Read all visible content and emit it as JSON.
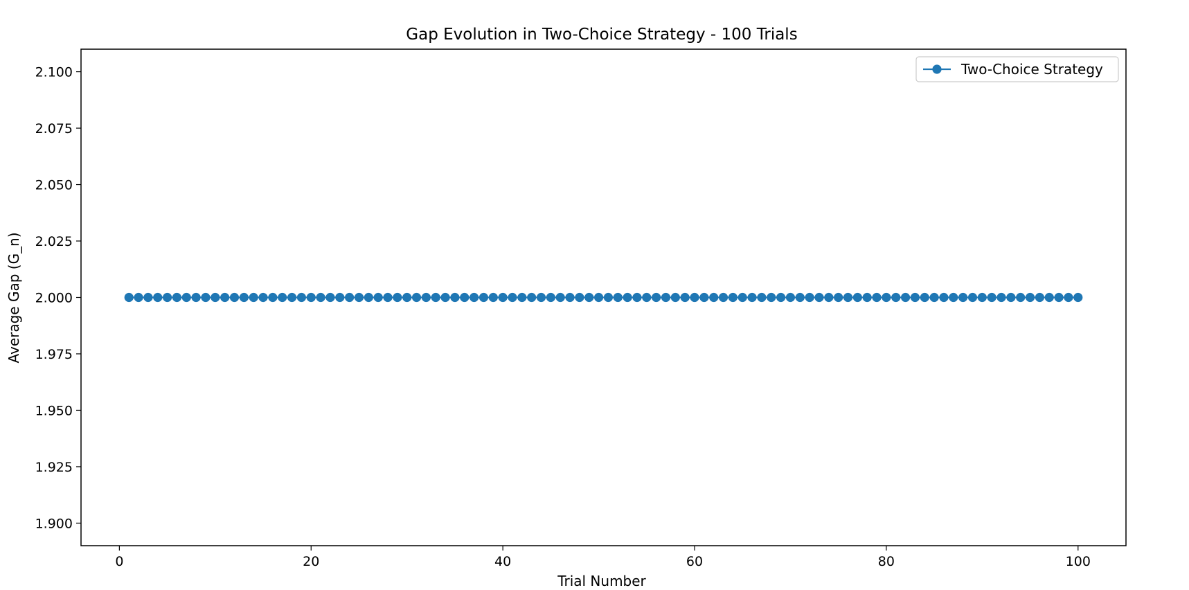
{
  "chart_data": {
    "type": "line",
    "title": "Gap Evolution in Two-Choice Strategy - 100 Trials",
    "xlabel": "Trial Number",
    "ylabel": "Average Gap (G_n)",
    "xlim": [
      -4,
      105
    ],
    "ylim": [
      1.89,
      2.11
    ],
    "x_ticks": [
      0,
      20,
      40,
      60,
      80,
      100
    ],
    "x_tick_labels": [
      "0",
      "20",
      "40",
      "60",
      "80",
      "100"
    ],
    "y_ticks": [
      1.9,
      1.925,
      1.95,
      1.975,
      2.0,
      2.025,
      2.05,
      2.075,
      2.1
    ],
    "y_tick_labels": [
      "1.900",
      "1.925",
      "1.950",
      "1.975",
      "2.000",
      "2.025",
      "2.050",
      "2.075",
      "2.100"
    ],
    "grid": false,
    "legend": {
      "position": "top-right",
      "entries": [
        "Two-Choice Strategy"
      ]
    },
    "series": [
      {
        "name": "Two-Choice Strategy",
        "color": "#1f77b4",
        "marker": "circle",
        "x_start": 1,
        "x_end": 100,
        "x_step": 1,
        "value": 2.0
      }
    ]
  }
}
